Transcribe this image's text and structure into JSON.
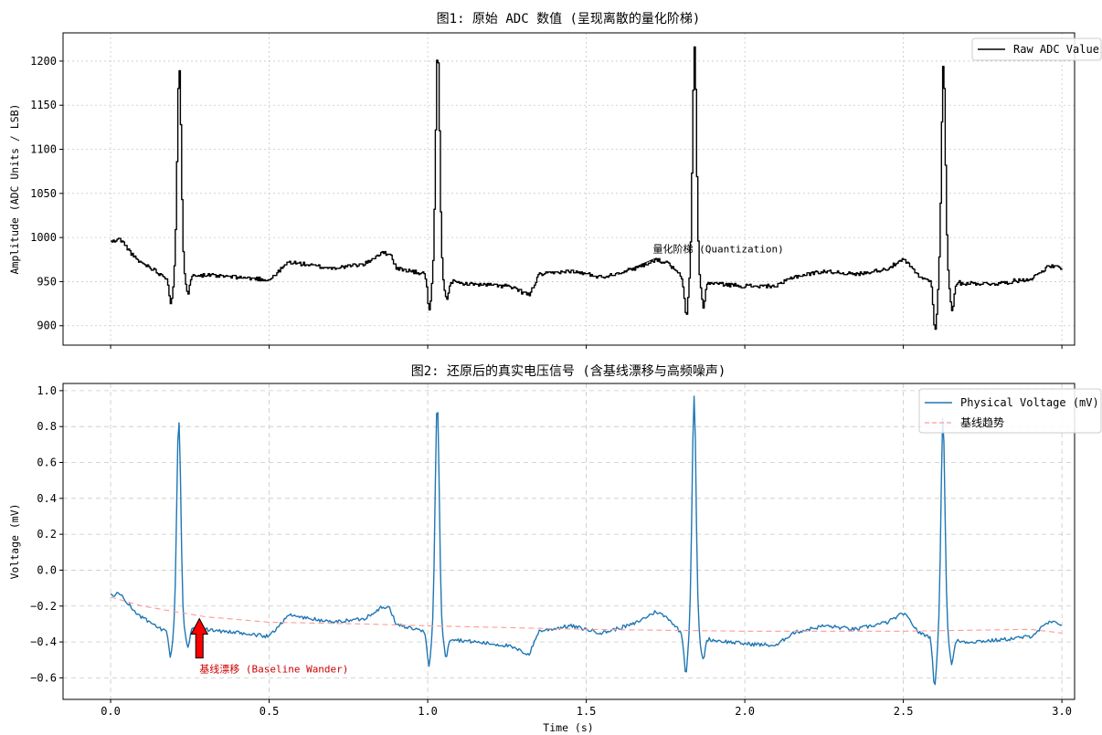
{
  "chart_data": [
    {
      "type": "line",
      "title": "图1: 原始 ADC 数值 (呈现离散的量化阶梯)",
      "xlabel": "",
      "ylabel": "Amplitude (ADC Units / LSB)",
      "xlim": [
        -0.15,
        3.04
      ],
      "ylim": [
        878,
        1232
      ],
      "xticks": [
        0.0,
        0.5,
        1.0,
        1.5,
        2.0,
        2.5,
        3.0
      ],
      "xtick_labels_visible": false,
      "yticks": [
        900,
        950,
        1000,
        1050,
        1100,
        1150,
        1200
      ],
      "ytick_labels": [
        "900",
        "950",
        "1000",
        "1050",
        "1100",
        "1150",
        "1200"
      ],
      "grid": "dotted",
      "legend_position": "top-right",
      "series": [
        {
          "name": "Raw ADC Value",
          "color": "#000000",
          "style": "step",
          "baseline_points": [
            [
              0.0,
              995
            ],
            [
              0.03,
              998
            ],
            [
              0.08,
              975
            ],
            [
              0.13,
              965
            ],
            [
              0.17,
              955
            ],
            [
              0.25,
              958
            ],
            [
              0.4,
              955
            ],
            [
              0.5,
              952
            ],
            [
              0.56,
              972
            ],
            [
              0.7,
              965
            ],
            [
              0.8,
              970
            ],
            [
              0.85,
              982
            ],
            [
              0.88,
              982
            ],
            [
              0.9,
              965
            ],
            [
              1.0,
              958
            ],
            [
              1.1,
              948
            ],
            [
              1.25,
              945
            ],
            [
              1.32,
              935
            ],
            [
              1.35,
              958
            ],
            [
              1.45,
              962
            ],
            [
              1.55,
              955
            ],
            [
              1.65,
              965
            ],
            [
              1.72,
              975
            ],
            [
              1.76,
              970
            ],
            [
              1.8,
              955
            ],
            [
              1.9,
              948
            ],
            [
              2.0,
              945
            ],
            [
              2.1,
              945
            ],
            [
              2.15,
              955
            ],
            [
              2.25,
              962
            ],
            [
              2.35,
              958
            ],
            [
              2.45,
              965
            ],
            [
              2.5,
              975
            ],
            [
              2.52,
              968
            ],
            [
              2.55,
              955
            ],
            [
              2.6,
              950
            ],
            [
              2.7,
              948
            ],
            [
              2.8,
              948
            ],
            [
              2.9,
              953
            ],
            [
              2.96,
              968
            ],
            [
              3.0,
              965
            ]
          ],
          "peaks": [
            {
              "t": 0.215,
              "peak": 1192,
              "pre_dip": 926,
              "post_dip": 937
            },
            {
              "t": 1.03,
              "peak": 1212,
              "pre_dip": 916,
              "post_dip": 930
            },
            {
              "t": 1.84,
              "peak": 1215,
              "pre_dip": 910,
              "post_dip": 922
            },
            {
              "t": 2.625,
              "peak": 1196,
              "pre_dip": 895,
              "post_dip": 918
            }
          ]
        }
      ],
      "annotations": [
        {
          "text": "量化阶梯 (Quantization)",
          "xy": [
            1.6,
            958
          ],
          "xytext": [
            1.71,
            983
          ],
          "color": "#000000"
        }
      ]
    },
    {
      "type": "line",
      "title": "图2: 还原后的真实电压信号 (含基线漂移与高频噪声)",
      "xlabel": "Time (s)",
      "ylabel": "Voltage (mV)",
      "xlim": [
        -0.15,
        3.04
      ],
      "ylim": [
        -0.72,
        1.04
      ],
      "xticks": [
        0.0,
        0.5,
        1.0,
        1.5,
        2.0,
        2.5,
        3.0
      ],
      "xtick_labels": [
        "0.0",
        "0.5",
        "1.0",
        "1.5",
        "2.0",
        "2.5",
        "3.0"
      ],
      "yticks": [
        -0.6,
        -0.4,
        -0.2,
        0.0,
        0.2,
        0.4,
        0.6,
        0.8,
        1.0
      ],
      "ytick_labels": [
        "−0.6",
        "−0.4",
        "−0.2",
        "0.0",
        "0.2",
        "0.4",
        "0.6",
        "0.8",
        "1.0"
      ],
      "grid": "dashed",
      "legend_position": "top-right",
      "series": [
        {
          "name": "Physical Voltage (mV)",
          "color": "#1f77b4",
          "style": "line",
          "baseline_points": [
            [
              0.0,
              -0.14
            ],
            [
              0.03,
              -0.13
            ],
            [
              0.08,
              -0.24
            ],
            [
              0.13,
              -0.3
            ],
            [
              0.17,
              -0.34
            ],
            [
              0.25,
              -0.32
            ],
            [
              0.4,
              -0.35
            ],
            [
              0.5,
              -0.37
            ],
            [
              0.56,
              -0.25
            ],
            [
              0.7,
              -0.29
            ],
            [
              0.8,
              -0.27
            ],
            [
              0.85,
              -0.21
            ],
            [
              0.88,
              -0.21
            ],
            [
              0.9,
              -0.3
            ],
            [
              1.0,
              -0.35
            ],
            [
              1.1,
              -0.39
            ],
            [
              1.25,
              -0.42
            ],
            [
              1.32,
              -0.47
            ],
            [
              1.35,
              -0.34
            ],
            [
              1.45,
              -0.31
            ],
            [
              1.55,
              -0.35
            ],
            [
              1.65,
              -0.3
            ],
            [
              1.72,
              -0.23
            ],
            [
              1.76,
              -0.27
            ],
            [
              1.8,
              -0.35
            ],
            [
              1.9,
              -0.39
            ],
            [
              2.0,
              -0.41
            ],
            [
              2.1,
              -0.42
            ],
            [
              2.15,
              -0.35
            ],
            [
              2.25,
              -0.31
            ],
            [
              2.35,
              -0.33
            ],
            [
              2.45,
              -0.29
            ],
            [
              2.5,
              -0.24
            ],
            [
              2.52,
              -0.28
            ],
            [
              2.55,
              -0.35
            ],
            [
              2.6,
              -0.38
            ],
            [
              2.7,
              -0.4
            ],
            [
              2.8,
              -0.39
            ],
            [
              2.9,
              -0.37
            ],
            [
              2.96,
              -0.29
            ],
            [
              3.0,
              -0.3
            ]
          ],
          "peaks": [
            {
              "t": 0.215,
              "peak": 0.84,
              "pre_dip": -0.48,
              "post_dip": -0.43
            },
            {
              "t": 1.03,
              "peak": 0.94,
              "pre_dip": -0.53,
              "post_dip": -0.48
            },
            {
              "t": 1.84,
              "peak": 0.96,
              "pre_dip": -0.57,
              "post_dip": -0.5
            },
            {
              "t": 2.625,
              "peak": 0.85,
              "pre_dip": -0.65,
              "post_dip": -0.52
            }
          ]
        },
        {
          "name": "基线趋势",
          "color": "#ff9999",
          "style": "dashed",
          "points": [
            [
              0.0,
              -0.15
            ],
            [
              0.1,
              -0.2
            ],
            [
              0.3,
              -0.26
            ],
            [
              0.5,
              -0.29
            ],
            [
              0.8,
              -0.3
            ],
            [
              1.0,
              -0.31
            ],
            [
              1.5,
              -0.33
            ],
            [
              2.0,
              -0.34
            ],
            [
              2.5,
              -0.34
            ],
            [
              2.9,
              -0.33
            ],
            [
              3.0,
              -0.35
            ]
          ]
        }
      ],
      "annotations": [
        {
          "text": "基线漂移 (Baseline Wander)",
          "xy": [
            0.28,
            -0.27
          ],
          "xytext": [
            0.28,
            -0.55
          ],
          "color": "#cc0000",
          "arrow": "red-fancy"
        }
      ]
    }
  ]
}
